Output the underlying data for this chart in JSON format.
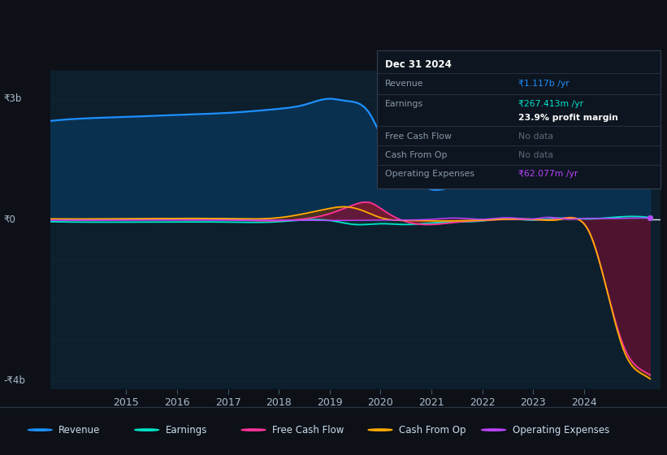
{
  "bg_color": "#0d1117",
  "plot_bg_color": "#0d1f2d",
  "grid_color": "#1e3340",
  "zero_line_color": "#ffffff",
  "ylim": [
    -4200000000,
    3700000000
  ],
  "colors": {
    "revenue": "#1e90ff",
    "revenue_fill": "#0a3050",
    "earnings": "#00e5cc",
    "free_cash_flow": "#ff3399",
    "cash_from_op": "#ffaa00",
    "operating_expenses": "#bb44ff"
  },
  "tooltip": {
    "date": "Dec 31 2024",
    "revenue_label": "Revenue",
    "revenue_value": "₹1.117b /yr",
    "earnings_label": "Earnings",
    "earnings_value": "₹267.413m /yr",
    "margin_text": "23.9% profit margin",
    "fcf_label": "Free Cash Flow",
    "fcf_value": "No data",
    "cashop_label": "Cash From Op",
    "cashop_value": "No data",
    "opex_label": "Operating Expenses",
    "opex_value": "₹62.077m /yr"
  },
  "legend": [
    {
      "label": "Revenue",
      "color": "#1e90ff"
    },
    {
      "label": "Earnings",
      "color": "#00e5cc"
    },
    {
      "label": "Free Cash Flow",
      "color": "#ff3399"
    },
    {
      "label": "Cash From Op",
      "color": "#ffaa00"
    },
    {
      "label": "Operating Expenses",
      "color": "#bb44ff"
    }
  ]
}
